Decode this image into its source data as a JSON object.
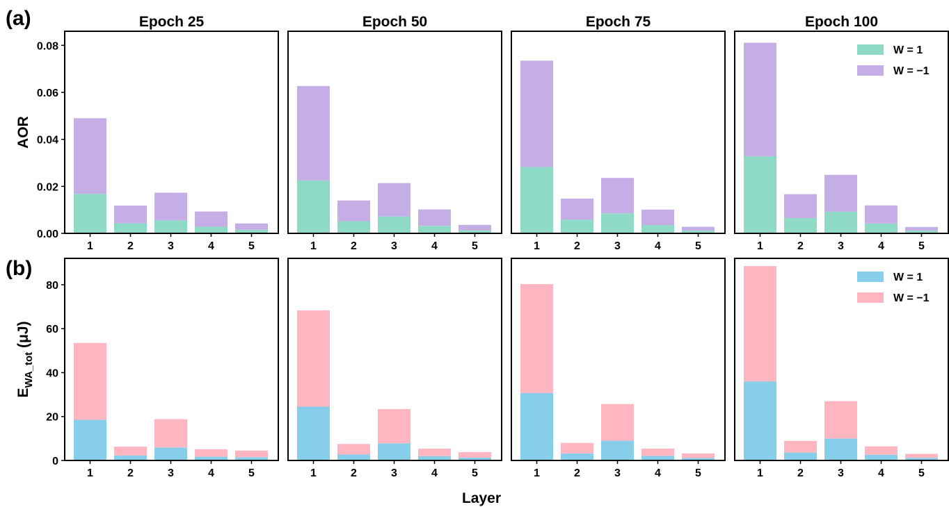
{
  "figure": {
    "panel_labels": [
      "(a)",
      "(b)"
    ],
    "xlabel": "Layer"
  },
  "colors": {
    "aor_w_pos": "#8fd9c7",
    "aor_w_neg": "#c5aee6",
    "e_w_pos": "#87ceea",
    "e_w_neg": "#ffb6c1"
  },
  "chart_data": [
    {
      "type": "bar",
      "stacked": true,
      "row": "a",
      "title": "Epoch 25",
      "categories": [
        "1",
        "2",
        "3",
        "4",
        "5"
      ],
      "ylabel": "AOR",
      "ylim": [
        0,
        0.086
      ],
      "yticks": [
        "0.00",
        "0.02",
        "0.04",
        "0.06",
        "0.08"
      ],
      "series": [
        {
          "name": "W = 1",
          "values": [
            0.0168,
            0.0043,
            0.0055,
            0.0028,
            0.0015
          ]
        },
        {
          "name": "W = −1",
          "values": [
            0.0322,
            0.0075,
            0.0118,
            0.0065,
            0.0027
          ]
        }
      ]
    },
    {
      "type": "bar",
      "stacked": true,
      "row": "a",
      "title": "Epoch 50",
      "categories": [
        "1",
        "2",
        "3",
        "4",
        "5"
      ],
      "ylim": [
        0,
        0.086
      ],
      "series": [
        {
          "name": "W = 1",
          "values": [
            0.0225,
            0.0052,
            0.0072,
            0.0032,
            0.0013
          ]
        },
        {
          "name": "W = −1",
          "values": [
            0.0402,
            0.0088,
            0.0142,
            0.007,
            0.0023
          ]
        }
      ]
    },
    {
      "type": "bar",
      "stacked": true,
      "row": "a",
      "title": "Epoch 75",
      "categories": [
        "1",
        "2",
        "3",
        "4",
        "5"
      ],
      "ylim": [
        0,
        0.086
      ],
      "series": [
        {
          "name": "W = 1",
          "values": [
            0.0282,
            0.0058,
            0.0085,
            0.0035,
            0.0012
          ]
        },
        {
          "name": "W = −1",
          "values": [
            0.0453,
            0.009,
            0.0151,
            0.0066,
            0.0016
          ]
        }
      ]
    },
    {
      "type": "bar",
      "stacked": true,
      "row": "a",
      "title": "Epoch 100",
      "categories": [
        "1",
        "2",
        "3",
        "4",
        "5"
      ],
      "ylim": [
        0,
        0.086
      ],
      "legend": "top-right",
      "series": [
        {
          "name": "W = 1",
          "values": [
            0.0328,
            0.0065,
            0.0092,
            0.0042,
            0.0012
          ]
        },
        {
          "name": "W = −1",
          "values": [
            0.0483,
            0.0102,
            0.0157,
            0.0077,
            0.0015
          ]
        }
      ]
    },
    {
      "type": "bar",
      "stacked": true,
      "row": "b",
      "categories": [
        "1",
        "2",
        "3",
        "4",
        "5"
      ],
      "ylabel_main": "E",
      "ylabel_sub": "WA_tot",
      "ylabel_unit": " (μJ)",
      "ylim": [
        0,
        92
      ],
      "yticks": [
        "0",
        "20",
        "40",
        "60",
        "80"
      ],
      "series": [
        {
          "name": "W = 1",
          "values": [
            18.5,
            2.3,
            5.9,
            1.7,
            1.5
          ]
        },
        {
          "name": "W = −1",
          "values": [
            35.0,
            4.0,
            12.9,
            3.4,
            3.0
          ]
        }
      ]
    },
    {
      "type": "bar",
      "stacked": true,
      "row": "b",
      "categories": [
        "1",
        "2",
        "3",
        "4",
        "5"
      ],
      "ylim": [
        0,
        92
      ],
      "series": [
        {
          "name": "W = 1",
          "values": [
            24.5,
            2.7,
            7.8,
            2.0,
            1.3
          ]
        },
        {
          "name": "W = −1",
          "values": [
            43.8,
            4.8,
            15.6,
            3.4,
            2.5
          ]
        }
      ]
    },
    {
      "type": "bar",
      "stacked": true,
      "row": "b",
      "categories": [
        "1",
        "2",
        "3",
        "4",
        "5"
      ],
      "ylim": [
        0,
        92
      ],
      "series": [
        {
          "name": "W = 1",
          "values": [
            30.7,
            3.2,
            9.0,
            2.1,
            1.1
          ]
        },
        {
          "name": "W = −1",
          "values": [
            49.6,
            4.8,
            16.7,
            3.3,
            2.1
          ]
        }
      ]
    },
    {
      "type": "bar",
      "stacked": true,
      "row": "b",
      "categories": [
        "1",
        "2",
        "3",
        "4",
        "5"
      ],
      "ylim": [
        0,
        92
      ],
      "legend": "top-right",
      "series": [
        {
          "name": "W = 1",
          "values": [
            36.0,
            3.6,
            10.0,
            2.6,
            1.2
          ]
        },
        {
          "name": "W = −1",
          "values": [
            52.5,
            5.3,
            17.0,
            3.8,
            1.8
          ]
        }
      ]
    }
  ]
}
